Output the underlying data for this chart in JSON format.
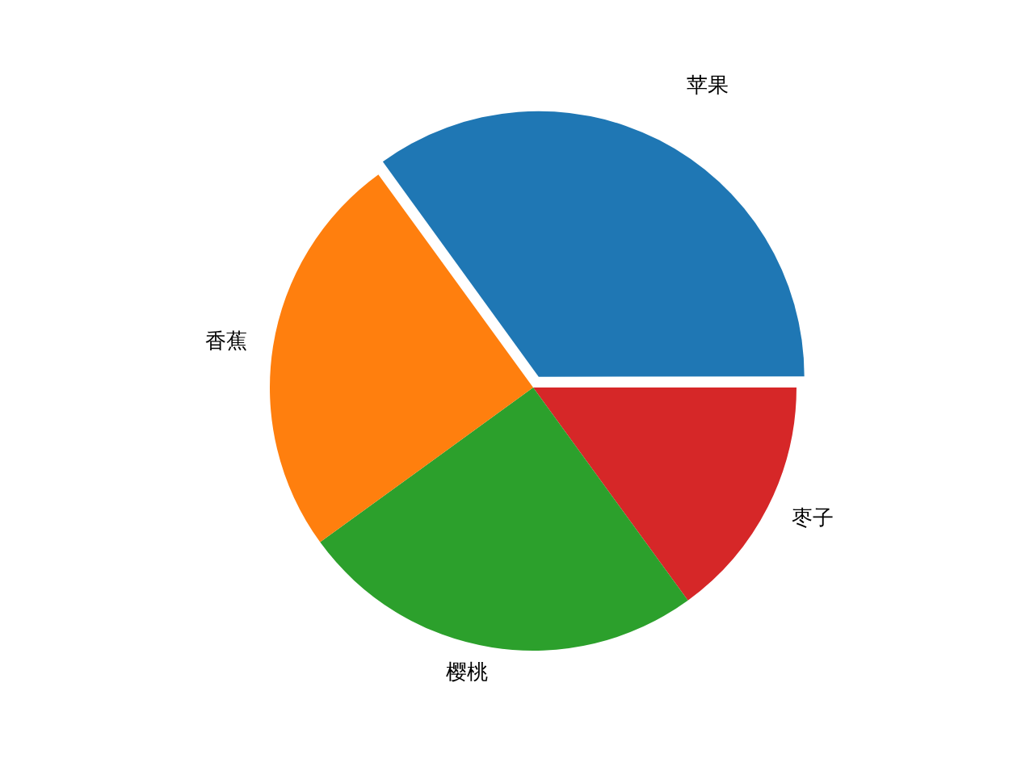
{
  "chart_data": {
    "type": "pie",
    "categories": [
      "苹果",
      "香蕉",
      "樱桃",
      "枣子"
    ],
    "values": [
      35,
      25,
      25,
      15
    ],
    "colors": [
      "#1f77b4",
      "#ff7f0e",
      "#2ca02c",
      "#d62728"
    ]
  }
}
